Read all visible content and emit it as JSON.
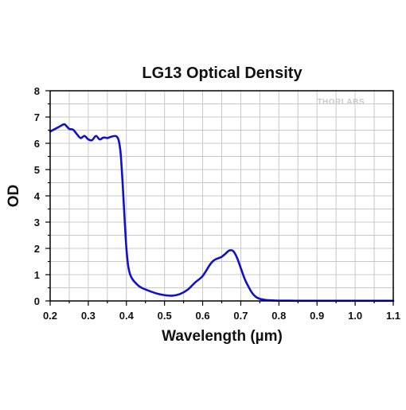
{
  "chart_data": {
    "type": "line",
    "title": "LG13 Optical Density",
    "xlabel": "Wavelength (µm)",
    "ylabel": "OD",
    "xlim": [
      0.2,
      1.1
    ],
    "ylim": [
      0,
      8
    ],
    "xticks": [
      "0.2",
      "0.3",
      "0.4",
      "0.5",
      "0.6",
      "0.7",
      "0.8",
      "0.9",
      "1.0",
      "1.1"
    ],
    "yticks": [
      "0",
      "1",
      "2",
      "3",
      "4",
      "5",
      "6",
      "7",
      "8"
    ],
    "grid": true,
    "legend": "none",
    "watermark": "THORLABS",
    "series": [
      {
        "color": "#1010d0",
        "x": [
          0.2,
          0.22,
          0.235,
          0.24,
          0.25,
          0.26,
          0.27,
          0.28,
          0.29,
          0.3,
          0.31,
          0.32,
          0.33,
          0.34,
          0.35,
          0.36,
          0.37,
          0.375,
          0.38,
          0.385,
          0.39,
          0.395,
          0.4,
          0.405,
          0.41,
          0.415,
          0.42,
          0.43,
          0.44,
          0.46,
          0.48,
          0.5,
          0.52,
          0.54,
          0.56,
          0.58,
          0.6,
          0.62,
          0.63,
          0.64,
          0.65,
          0.66,
          0.67,
          0.68,
          0.69,
          0.7,
          0.71,
          0.72,
          0.73,
          0.74,
          0.75,
          0.76,
          0.77,
          0.78,
          0.8,
          0.82,
          0.85,
          0.9,
          0.95,
          1.0,
          1.05,
          1.1
        ],
        "y": [
          6.45,
          6.6,
          6.72,
          6.7,
          6.55,
          6.52,
          6.35,
          6.2,
          6.28,
          6.15,
          6.12,
          6.28,
          6.15,
          6.22,
          6.2,
          6.25,
          6.28,
          6.25,
          6.1,
          5.6,
          4.5,
          3.2,
          2.0,
          1.3,
          1.0,
          0.85,
          0.75,
          0.6,
          0.5,
          0.38,
          0.28,
          0.22,
          0.2,
          0.26,
          0.42,
          0.7,
          0.95,
          1.4,
          1.55,
          1.62,
          1.68,
          1.8,
          1.92,
          1.9,
          1.65,
          1.25,
          0.85,
          0.55,
          0.3,
          0.15,
          0.08,
          0.05,
          0.03,
          0.02,
          0.01,
          0.01,
          0.005,
          0.005,
          0.005,
          0.005,
          0.005,
          0.005
        ]
      }
    ]
  }
}
